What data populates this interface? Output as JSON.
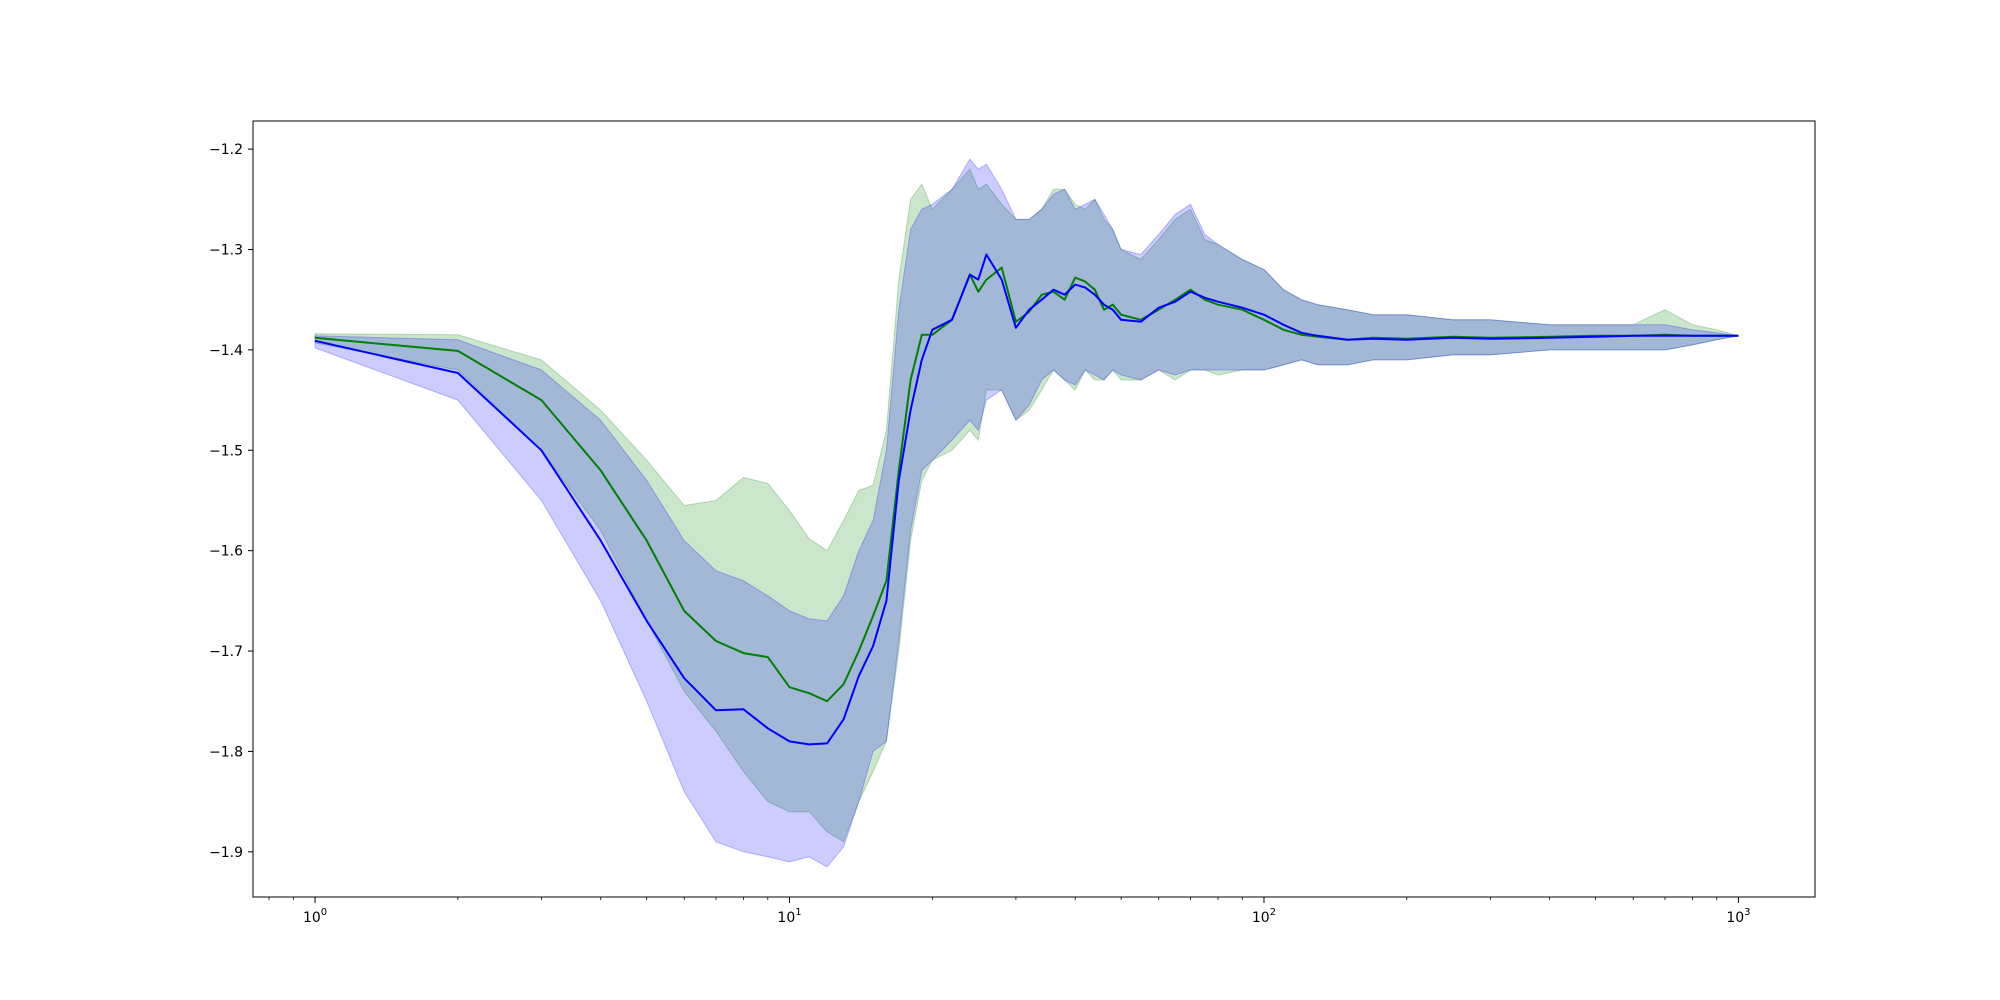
{
  "chart_data": {
    "type": "line",
    "title": "",
    "xlabel": "",
    "ylabel": "",
    "x_scale": "log",
    "xlim": [
      0.74,
      1450
    ],
    "ylim": [
      -1.945,
      -1.172
    ],
    "grid": false,
    "legend": "none",
    "x_ticks": [
      {
        "value": 1,
        "base": "10",
        "exp": "0"
      },
      {
        "value": 10,
        "base": "10",
        "exp": "1"
      },
      {
        "value": 100,
        "base": "10",
        "exp": "2"
      },
      {
        "value": 1000,
        "base": "10",
        "exp": "3"
      }
    ],
    "y_ticks": [
      {
        "value": -1.2,
        "label": "−1.2"
      },
      {
        "value": -1.3,
        "label": "−1.3"
      },
      {
        "value": -1.4,
        "label": "−1.4"
      },
      {
        "value": -1.5,
        "label": "−1.5"
      },
      {
        "value": -1.6,
        "label": "−1.6"
      },
      {
        "value": -1.7,
        "label": "−1.7"
      },
      {
        "value": -1.8,
        "label": "−1.8"
      },
      {
        "value": -1.9,
        "label": "−1.9"
      }
    ],
    "series": [
      {
        "color": "#008000",
        "fill_color": "#008000",
        "fill_opacity": 0.2,
        "x": [
          1,
          2,
          3,
          4,
          5,
          6,
          7,
          8,
          9,
          10,
          11,
          12,
          13,
          14,
          15,
          16,
          17,
          18,
          19,
          20,
          22,
          24,
          25,
          26,
          28,
          30,
          32,
          34,
          36,
          38,
          40,
          42,
          44,
          46,
          48,
          50,
          55,
          60,
          65,
          70,
          75,
          80,
          90,
          100,
          110,
          120,
          130,
          150,
          170,
          200,
          250,
          300,
          400,
          500,
          600,
          700,
          800,
          900,
          1000
        ],
        "y": [
          -1.388,
          -1.401,
          -1.45,
          -1.52,
          -1.59,
          -1.66,
          -1.69,
          -1.702,
          -1.706,
          -1.736,
          -1.742,
          -1.75,
          -1.733,
          -1.7,
          -1.665,
          -1.63,
          -1.52,
          -1.43,
          -1.385,
          -1.385,
          -1.37,
          -1.325,
          -1.342,
          -1.33,
          -1.318,
          -1.372,
          -1.362,
          -1.345,
          -1.342,
          -1.35,
          -1.328,
          -1.332,
          -1.34,
          -1.36,
          -1.355,
          -1.365,
          -1.37,
          -1.36,
          -1.35,
          -1.34,
          -1.35,
          -1.355,
          -1.36,
          -1.37,
          -1.38,
          -1.385,
          -1.387,
          -1.39,
          -1.388,
          -1.389,
          -1.387,
          -1.388,
          -1.387,
          -1.386,
          -1.386,
          -1.385,
          -1.386,
          -1.386,
          -1.386
        ],
        "upper": [
          -1.384,
          -1.385,
          -1.41,
          -1.46,
          -1.51,
          -1.555,
          -1.55,
          -1.527,
          -1.533,
          -1.56,
          -1.588,
          -1.6,
          -1.57,
          -1.54,
          -1.535,
          -1.48,
          -1.33,
          -1.25,
          -1.235,
          -1.26,
          -1.24,
          -1.22,
          -1.24,
          -1.235,
          -1.255,
          -1.27,
          -1.27,
          -1.26,
          -1.24,
          -1.24,
          -1.255,
          -1.26,
          -1.25,
          -1.27,
          -1.28,
          -1.3,
          -1.31,
          -1.29,
          -1.27,
          -1.26,
          -1.29,
          -1.295,
          -1.31,
          -1.32,
          -1.34,
          -1.35,
          -1.355,
          -1.36,
          -1.365,
          -1.365,
          -1.37,
          -1.37,
          -1.375,
          -1.375,
          -1.375,
          -1.36,
          -1.375,
          -1.38,
          -1.386
        ],
        "lower": [
          -1.393,
          -1.42,
          -1.5,
          -1.58,
          -1.67,
          -1.74,
          -1.78,
          -1.82,
          -1.85,
          -1.86,
          -1.86,
          -1.88,
          -1.89,
          -1.85,
          -1.82,
          -1.79,
          -1.7,
          -1.59,
          -1.53,
          -1.51,
          -1.5,
          -1.48,
          -1.49,
          -1.44,
          -1.44,
          -1.47,
          -1.46,
          -1.44,
          -1.42,
          -1.43,
          -1.44,
          -1.42,
          -1.43,
          -1.43,
          -1.42,
          -1.43,
          -1.43,
          -1.42,
          -1.43,
          -1.42,
          -1.42,
          -1.425,
          -1.42,
          -1.42,
          -1.415,
          -1.41,
          -1.415,
          -1.415,
          -1.41,
          -1.41,
          -1.405,
          -1.405,
          -1.4,
          -1.4,
          -1.4,
          -1.4,
          -1.395,
          -1.39,
          -1.386
        ]
      },
      {
        "color": "#0000ff",
        "fill_color": "#0000ff",
        "fill_opacity": 0.2,
        "x": [
          1,
          2,
          3,
          4,
          5,
          6,
          7,
          8,
          9,
          10,
          11,
          12,
          13,
          14,
          15,
          16,
          17,
          18,
          19,
          20,
          22,
          24,
          25,
          26,
          28,
          30,
          32,
          34,
          36,
          38,
          40,
          42,
          44,
          46,
          48,
          50,
          55,
          60,
          65,
          70,
          75,
          80,
          90,
          100,
          110,
          120,
          130,
          150,
          170,
          200,
          250,
          300,
          400,
          500,
          600,
          700,
          800,
          900,
          1000
        ],
        "y": [
          -1.391,
          -1.423,
          -1.5,
          -1.59,
          -1.67,
          -1.727,
          -1.759,
          -1.758,
          -1.777,
          -1.79,
          -1.793,
          -1.792,
          -1.768,
          -1.725,
          -1.695,
          -1.65,
          -1.53,
          -1.46,
          -1.41,
          -1.38,
          -1.37,
          -1.325,
          -1.33,
          -1.305,
          -1.33,
          -1.378,
          -1.36,
          -1.35,
          -1.34,
          -1.345,
          -1.335,
          -1.338,
          -1.345,
          -1.355,
          -1.36,
          -1.37,
          -1.372,
          -1.358,
          -1.352,
          -1.342,
          -1.348,
          -1.352,
          -1.358,
          -1.365,
          -1.375,
          -1.383,
          -1.386,
          -1.39,
          -1.389,
          -1.39,
          -1.388,
          -1.389,
          -1.388,
          -1.387,
          -1.386,
          -1.386,
          -1.386,
          -1.386,
          -1.386
        ],
        "upper": [
          -1.386,
          -1.39,
          -1.42,
          -1.47,
          -1.53,
          -1.59,
          -1.62,
          -1.63,
          -1.645,
          -1.66,
          -1.668,
          -1.67,
          -1.645,
          -1.6,
          -1.57,
          -1.5,
          -1.36,
          -1.28,
          -1.26,
          -1.255,
          -1.24,
          -1.21,
          -1.22,
          -1.215,
          -1.24,
          -1.27,
          -1.27,
          -1.26,
          -1.245,
          -1.24,
          -1.26,
          -1.255,
          -1.25,
          -1.265,
          -1.28,
          -1.3,
          -1.305,
          -1.285,
          -1.265,
          -1.255,
          -1.285,
          -1.295,
          -1.31,
          -1.32,
          -1.34,
          -1.35,
          -1.355,
          -1.36,
          -1.365,
          -1.365,
          -1.37,
          -1.37,
          -1.375,
          -1.375,
          -1.375,
          -1.375,
          -1.38,
          -1.383,
          -1.386
        ],
        "lower": [
          -1.398,
          -1.45,
          -1.55,
          -1.65,
          -1.75,
          -1.84,
          -1.89,
          -1.9,
          -1.905,
          -1.91,
          -1.905,
          -1.915,
          -1.895,
          -1.85,
          -1.8,
          -1.79,
          -1.69,
          -1.58,
          -1.52,
          -1.51,
          -1.49,
          -1.47,
          -1.48,
          -1.45,
          -1.44,
          -1.47,
          -1.455,
          -1.43,
          -1.42,
          -1.43,
          -1.435,
          -1.42,
          -1.425,
          -1.43,
          -1.42,
          -1.425,
          -1.43,
          -1.42,
          -1.425,
          -1.42,
          -1.42,
          -1.42,
          -1.42,
          -1.42,
          -1.415,
          -1.41,
          -1.415,
          -1.415,
          -1.41,
          -1.41,
          -1.405,
          -1.405,
          -1.4,
          -1.4,
          -1.4,
          -1.4,
          -1.395,
          -1.39,
          -1.386
        ]
      }
    ]
  }
}
